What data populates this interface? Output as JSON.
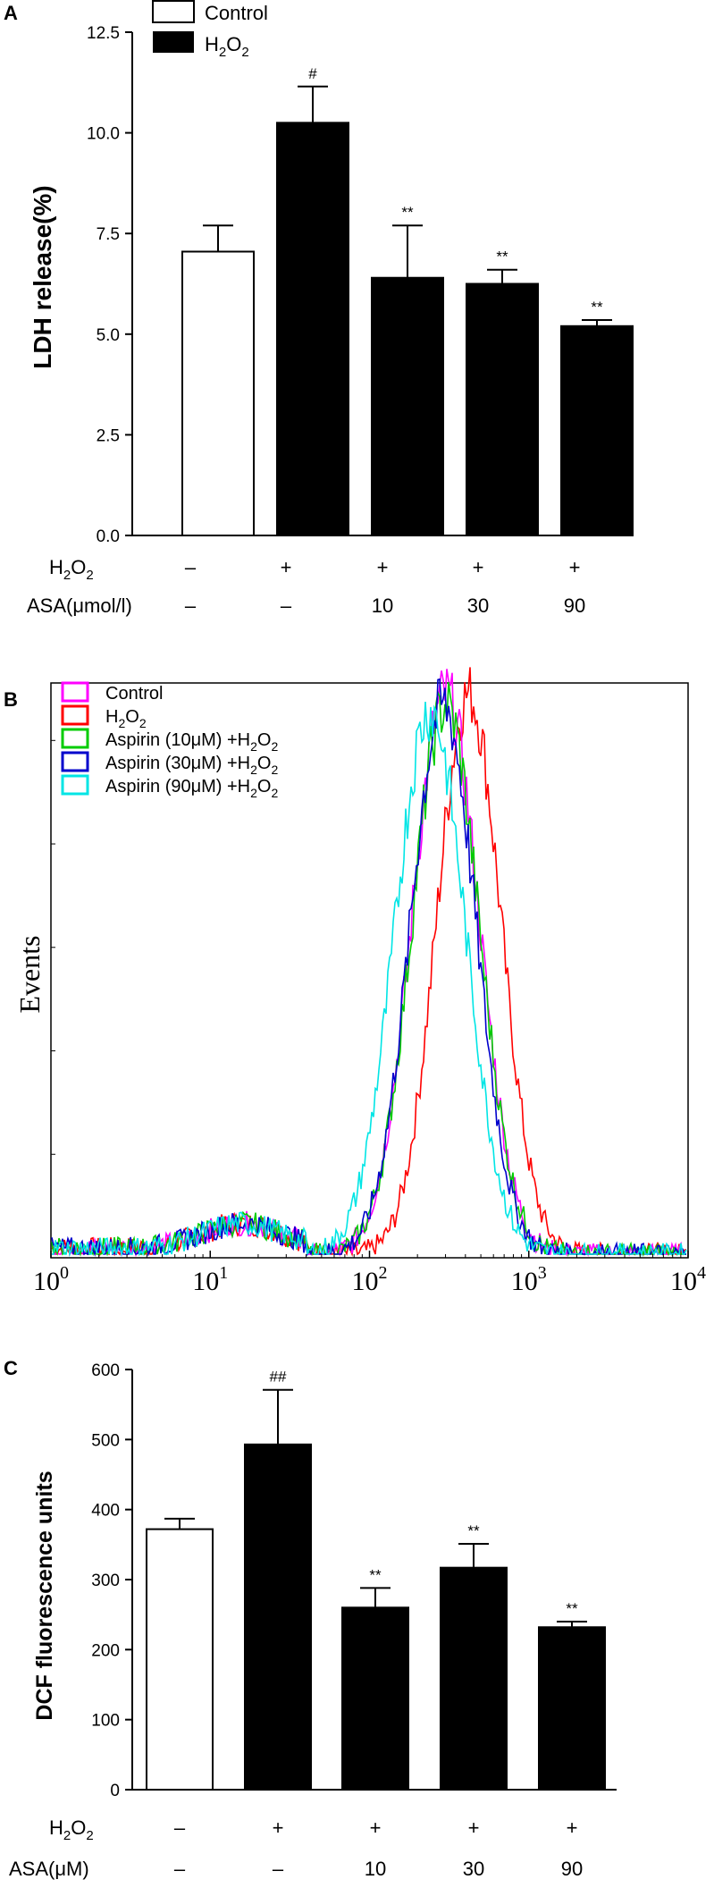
{
  "chart_data": [
    {
      "panel": "A",
      "type": "bar",
      "ylabel": "LDH release(%)",
      "ylim": [
        0,
        12.5
      ],
      "yticks": [
        "0.0",
        "2.5",
        "5.0",
        "7.5",
        "10.0",
        "12.5"
      ],
      "legend": [
        {
          "label": "Control",
          "fill": "#ffffff"
        },
        {
          "label": "H2O2",
          "fill": "#000000"
        }
      ],
      "bars": [
        {
          "value": 7.05,
          "error": 0.65,
          "fill": "#ffffff",
          "sig": ""
        },
        {
          "value": 10.25,
          "error": 0.9,
          "fill": "#000000",
          "sig": "#"
        },
        {
          "value": 6.4,
          "error": 1.3,
          "fill": "#000000",
          "sig": "**"
        },
        {
          "value": 6.25,
          "error": 0.35,
          "fill": "#000000",
          "sig": "**"
        },
        {
          "value": 5.2,
          "error": 0.15,
          "fill": "#000000",
          "sig": "**"
        }
      ],
      "conditions": [
        {
          "name": "H2O2",
          "values": [
            "–",
            "+",
            "+",
            "+",
            "+"
          ]
        },
        {
          "name": "ASA(μmol/l)",
          "values": [
            "–",
            "–",
            "10",
            "30",
            "90"
          ]
        }
      ]
    },
    {
      "panel": "B",
      "type": "line",
      "ylabel": "Events",
      "xscale": "log",
      "xlim": [
        1,
        10000
      ],
      "xticks": [
        "10^0",
        "10^1",
        "10^2",
        "10^3",
        "10^4"
      ],
      "series": [
        {
          "name": "Control",
          "color": "#ff00ff",
          "peak_x": 300,
          "peak": 1.0
        },
        {
          "name": "H2O2",
          "color": "#ff0000",
          "peak_x": 420,
          "peak": 1.0
        },
        {
          "name": "Aspirin (10μM) +H2O2",
          "color": "#00cc00",
          "peak_x": 300,
          "peak": 0.98
        },
        {
          "name": "Aspirin (30μM) +H2O2",
          "color": "#0000cc",
          "peak_x": 290,
          "peak": 0.98
        },
        {
          "name": "Aspirin (90μM) +H2O2",
          "color": "#00e5e5",
          "peak_x": 240,
          "peak": 0.97
        }
      ]
    },
    {
      "panel": "C",
      "type": "bar",
      "ylabel": "DCF fluorescence units",
      "ylim": [
        0,
        600
      ],
      "yticks": [
        "0",
        "100",
        "200",
        "300",
        "400",
        "500",
        "600"
      ],
      "bars": [
        {
          "value": 372,
          "error": 15,
          "fill": "#ffffff",
          "sig": ""
        },
        {
          "value": 493,
          "error": 78,
          "fill": "#000000",
          "sig": "##"
        },
        {
          "value": 260,
          "error": 28,
          "fill": "#000000",
          "sig": "**"
        },
        {
          "value": 317,
          "error": 34,
          "fill": "#000000",
          "sig": "**"
        },
        {
          "value": 232,
          "error": 8,
          "fill": "#000000",
          "sig": "**"
        }
      ],
      "conditions": [
        {
          "name": "H2O2",
          "values": [
            "–",
            "+",
            "+",
            "+",
            "+"
          ]
        },
        {
          "name": "ASA(μM)",
          "values": [
            "–",
            "–",
            "10",
            "30",
            "90"
          ]
        }
      ]
    }
  ]
}
